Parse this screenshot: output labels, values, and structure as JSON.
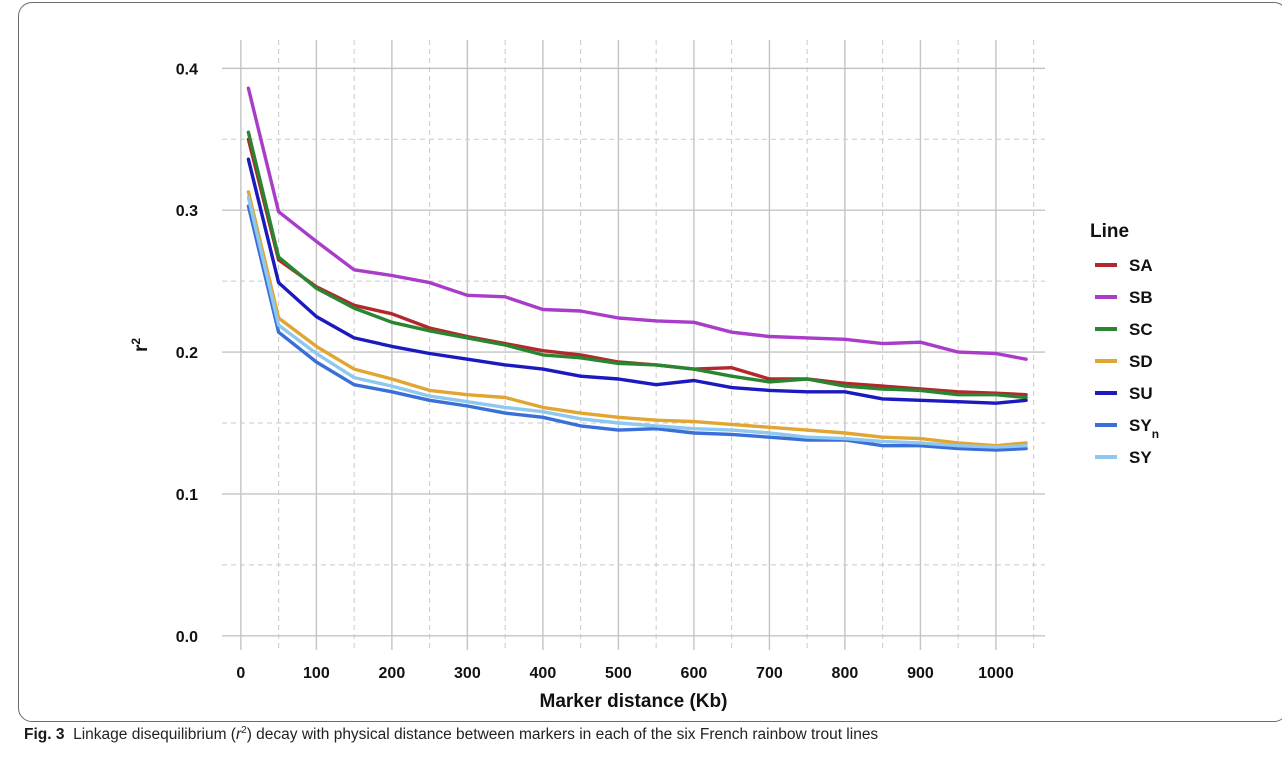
{
  "chart_data": {
    "type": "line",
    "xlabel": "Marker distance (Kb)",
    "ylabel": "r",
    "ylabel_sup": "2",
    "xlim": [
      -25,
      1065
    ],
    "ylim": [
      -0.01,
      0.42
    ],
    "x_ticks": [
      0,
      100,
      200,
      300,
      400,
      500,
      600,
      700,
      800,
      900,
      1000
    ],
    "y_ticks": [
      0.0,
      0.1,
      0.2,
      0.3,
      0.4
    ],
    "x_tick_labels": [
      "0",
      "100",
      "200",
      "300",
      "400",
      "500",
      "600",
      "700",
      "800",
      "900",
      "1000"
    ],
    "y_tick_labels": [
      "0.0",
      "0.1",
      "0.2",
      "0.3",
      "0.4"
    ],
    "grid": true,
    "legend_title": "Line",
    "legend_position": "right",
    "x": [
      10,
      50,
      100,
      150,
      200,
      250,
      300,
      350,
      400,
      450,
      500,
      550,
      600,
      650,
      700,
      750,
      800,
      850,
      900,
      950,
      1000,
      1040
    ],
    "series": [
      {
        "name": "SA",
        "color": "#b3282d",
        "values": [
          0.35,
          0.265,
          0.246,
          0.233,
          0.227,
          0.217,
          0.211,
          0.206,
          0.201,
          0.198,
          0.193,
          0.191,
          0.188,
          0.189,
          0.181,
          0.181,
          0.178,
          0.176,
          0.174,
          0.172,
          0.171,
          0.17
        ]
      },
      {
        "name": "SB",
        "color": "#a93cc9",
        "values": [
          0.386,
          0.299,
          0.278,
          0.258,
          0.254,
          0.249,
          0.24,
          0.239,
          0.23,
          0.229,
          0.224,
          0.222,
          0.221,
          0.214,
          0.211,
          0.21,
          0.209,
          0.206,
          0.207,
          0.2,
          0.199,
          0.195
        ]
      },
      {
        "name": "SC",
        "color": "#27862f",
        "values": [
          0.355,
          0.267,
          0.245,
          0.231,
          0.221,
          0.215,
          0.21,
          0.205,
          0.198,
          0.196,
          0.192,
          0.191,
          0.188,
          0.183,
          0.179,
          0.181,
          0.176,
          0.174,
          0.173,
          0.17,
          0.17,
          0.168
        ]
      },
      {
        "name": "SD",
        "color": "#e2a531",
        "values": [
          0.313,
          0.224,
          0.204,
          0.188,
          0.181,
          0.173,
          0.17,
          0.168,
          0.161,
          0.157,
          0.154,
          0.152,
          0.151,
          0.149,
          0.147,
          0.145,
          0.143,
          0.14,
          0.139,
          0.136,
          0.134,
          0.136
        ]
      },
      {
        "name": "SU",
        "color": "#1a1abf",
        "values": [
          0.336,
          0.249,
          0.225,
          0.21,
          0.204,
          0.199,
          0.195,
          0.191,
          0.188,
          0.183,
          0.181,
          0.177,
          0.18,
          0.175,
          0.173,
          0.172,
          0.172,
          0.167,
          0.166,
          0.165,
          0.164,
          0.166
        ]
      },
      {
        "name": "SY",
        "name_sub": "n",
        "color": "#3a6fd8",
        "values": [
          0.303,
          0.214,
          0.193,
          0.177,
          0.172,
          0.166,
          0.162,
          0.157,
          0.154,
          0.148,
          0.145,
          0.146,
          0.143,
          0.142,
          0.14,
          0.138,
          0.138,
          0.134,
          0.134,
          0.132,
          0.131,
          0.132
        ]
      },
      {
        "name": "SY",
        "color": "#8ec8ee",
        "values": [
          0.309,
          0.219,
          0.199,
          0.182,
          0.176,
          0.169,
          0.165,
          0.161,
          0.158,
          0.153,
          0.15,
          0.148,
          0.146,
          0.145,
          0.143,
          0.14,
          0.139,
          0.137,
          0.136,
          0.134,
          0.133,
          0.134
        ]
      }
    ]
  },
  "caption": {
    "fig_label": "Fig. 3",
    "text_before": "Linkage disequilibrium (",
    "r": "r",
    "sup": "2",
    "text_after": ") decay with physical distance between markers in each of the six French rainbow trout lines"
  }
}
